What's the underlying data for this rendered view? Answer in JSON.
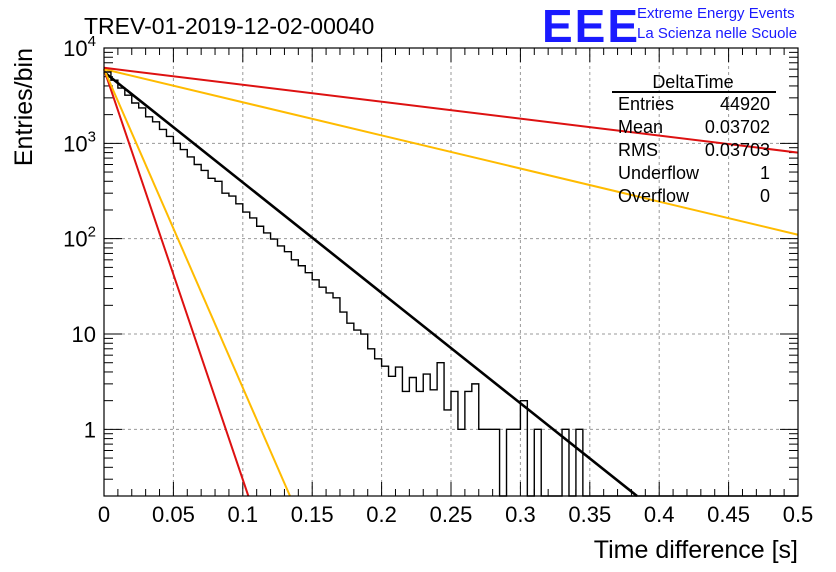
{
  "chart_data": {
    "type": "line",
    "title": "TREV-01-2019-12-02-00040",
    "xlabel": "Time difference [s]",
    "ylabel": "Entries/bin",
    "xlim": [
      0,
      0.5
    ],
    "ylim": [
      0.2,
      10000
    ],
    "yscale": "log",
    "grid": true,
    "x_ticks": [
      "0",
      "0.05",
      "0.1",
      "0.15",
      "0.2",
      "0.25",
      "0.3",
      "0.35",
      "0.4",
      "0.45",
      "0.5"
    ],
    "y_ticks": [
      {
        "value": 1,
        "base": "1",
        "exp": ""
      },
      {
        "value": 10,
        "base": "10",
        "exp": ""
      },
      {
        "value": 100,
        "base": "10",
        "exp": "2"
      },
      {
        "value": 1000,
        "base": "10",
        "exp": "3"
      },
      {
        "value": 10000,
        "base": "10",
        "exp": "4"
      }
    ],
    "histogram": {
      "bin_width": 0.005,
      "bin_start": 0,
      "color": "#000000",
      "values": [
        5600,
        4600,
        3800,
        3200,
        2650,
        2350,
        1900,
        1680,
        1400,
        1180,
        1000,
        860,
        720,
        600,
        520,
        430,
        400,
        300,
        280,
        232,
        190,
        165,
        135,
        115,
        99,
        84,
        73,
        60,
        52,
        44,
        37,
        31,
        27,
        24,
        17,
        13,
        11,
        10,
        7,
        5.5,
        4.6,
        3.6,
        4.5,
        2.5,
        3.5,
        2.5,
        3.8,
        2.6,
        5,
        1.6,
        2.5,
        1,
        2.5,
        3,
        1,
        1,
        1,
        0.2,
        1,
        1,
        2,
        0.2,
        1,
        0.2,
        0.2,
        0.2,
        1,
        0.2,
        1,
        0.2,
        0.2,
        0.2,
        0.2,
        0.2,
        0.2,
        0.2,
        0.2,
        0.2,
        0.2,
        0.2,
        0.2,
        0.2,
        0.2,
        0.2,
        0.2,
        0.2,
        0.2,
        0.2,
        0.2,
        0.2,
        0.2,
        0.2,
        0.2,
        0.2,
        0.2,
        0.2,
        0.2,
        0.2,
        0.2,
        0.2
      ]
    },
    "series": [
      {
        "color": "#000000",
        "points": [
          [
            0,
            5600
          ],
          [
            0.384,
            0.2
          ]
        ]
      },
      {
        "color": "#dd1111",
        "points": [
          [
            0,
            6000
          ],
          [
            0.104,
            0.2
          ]
        ]
      },
      {
        "color": "#ffbb00",
        "points": [
          [
            0,
            6000
          ],
          [
            0.134,
            0.2
          ]
        ]
      },
      {
        "color": "#ffbb00",
        "points": [
          [
            0,
            6000
          ],
          [
            0.5,
            110
          ]
        ]
      },
      {
        "color": "#dd1111",
        "points": [
          [
            0,
            6200
          ],
          [
            0.5,
            800
          ]
        ]
      }
    ],
    "stats_box": {
      "title": "DeltaTime",
      "rows": [
        {
          "label": "Entries",
          "value": "44920"
        },
        {
          "label": "Mean",
          "value": "0.03702"
        },
        {
          "label": "RMS",
          "value": "0.03703"
        },
        {
          "label": "Underflow",
          "value": "1"
        },
        {
          "label": "Overflow",
          "value": "0"
        }
      ]
    }
  },
  "logo": {
    "letters": "EEE",
    "line1": "Extreme Energy Events",
    "line2": "La Scienza nelle Scuole"
  }
}
